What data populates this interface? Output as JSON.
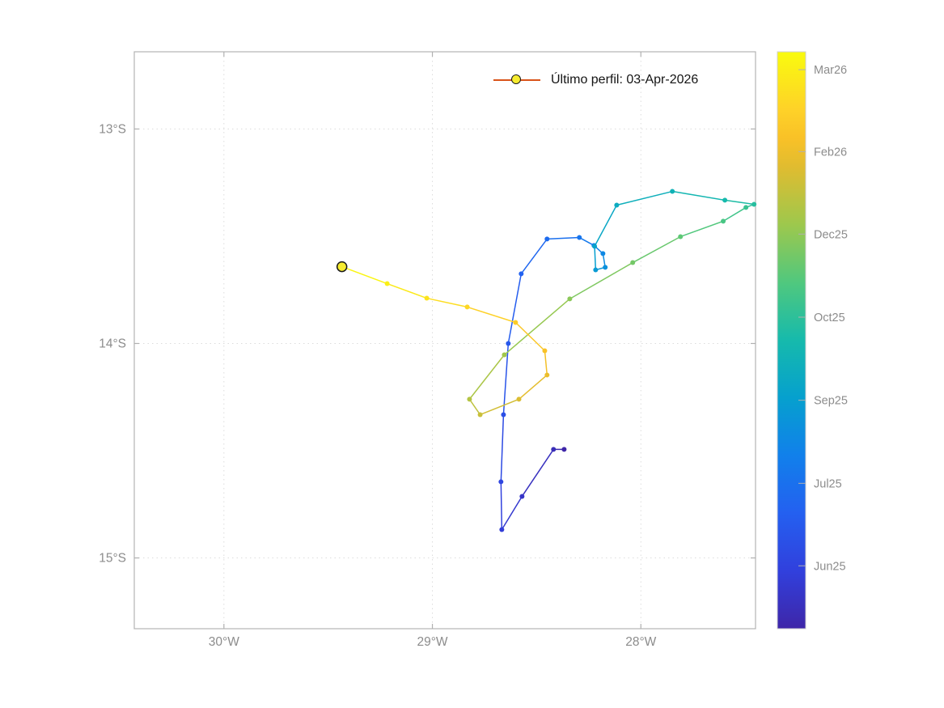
{
  "chart_data": {
    "type": "line",
    "description": "Float trajectory map colored by profile date (parula colormap) with last-profile marker",
    "title": "",
    "xlabel": "",
    "ylabel": "",
    "grid": "dotted",
    "legend": {
      "label": "Último perfil: 03-Apr-2026",
      "line_color": "#d95319",
      "marker_fill": "#f6ec2f",
      "marker_edge": "#1a1a1a",
      "position": "top-right-inside"
    },
    "xlim_degW": [
      30.43,
      27.45
    ],
    "ylim_degS": [
      12.64,
      15.33
    ],
    "x_ticks": [
      {
        "value_degW": 30,
        "label": "30°W"
      },
      {
        "value_degW": 29,
        "label": "29°W"
      },
      {
        "value_degW": 28,
        "label": "28°W"
      }
    ],
    "y_ticks": [
      {
        "value_degS": 13,
        "label": "13°S"
      },
      {
        "value_degS": 14,
        "label": "14°S"
      },
      {
        "value_degS": 15,
        "label": "15°S"
      }
    ],
    "colormap_name": "parula",
    "colormap_stops": [
      [
        0.0,
        "#3e26a8"
      ],
      [
        0.1,
        "#3140dd"
      ],
      [
        0.2,
        "#2460f0"
      ],
      [
        0.3,
        "#1180eb"
      ],
      [
        0.4,
        "#06a0ce"
      ],
      [
        0.5,
        "#16baac"
      ],
      [
        0.6,
        "#50c87e"
      ],
      [
        0.7,
        "#9dc84d"
      ],
      [
        0.8,
        "#e0bc30"
      ],
      [
        0.85,
        "#f9c127"
      ],
      [
        0.9,
        "#fed228"
      ],
      [
        1.0,
        "#f9fb0e"
      ]
    ],
    "colorbar_ticks": [
      {
        "label": "Jun25",
        "t": 0.109
      },
      {
        "label": "Jul25",
        "t": 0.252
      },
      {
        "label": "Sep25",
        "t": 0.396
      },
      {
        "label": "Oct25",
        "t": 0.54
      },
      {
        "label": "Dec25",
        "t": 0.684
      },
      {
        "label": "Feb26",
        "t": 0.827
      },
      {
        "label": "Mar26",
        "t": 0.969
      }
    ],
    "trajectory": [
      {
        "lon_degW": 28.368,
        "lat_degS": 14.494,
        "t": 0.0
      },
      {
        "lon_degW": 28.419,
        "lat_degS": 14.494,
        "t": 0.029
      },
      {
        "lon_degW": 28.57,
        "lat_degS": 14.713,
        "t": 0.059
      },
      {
        "lon_degW": 28.667,
        "lat_degS": 14.868,
        "t": 0.088
      },
      {
        "lon_degW": 28.671,
        "lat_degS": 14.645,
        "t": 0.118
      },
      {
        "lon_degW": 28.659,
        "lat_degS": 14.332,
        "t": 0.147
      },
      {
        "lon_degW": 28.636,
        "lat_degS": 14.0,
        "t": 0.176
      },
      {
        "lon_degW": 28.574,
        "lat_degS": 13.675,
        "t": 0.206
      },
      {
        "lon_degW": 28.45,
        "lat_degS": 13.513,
        "t": 0.235
      },
      {
        "lon_degW": 28.295,
        "lat_degS": 13.506,
        "t": 0.265
      },
      {
        "lon_degW": 28.225,
        "lat_degS": 13.543,
        "t": 0.294
      },
      {
        "lon_degW": 28.182,
        "lat_degS": 13.581,
        "t": 0.324
      },
      {
        "lon_degW": 28.171,
        "lat_degS": 13.645,
        "t": 0.353
      },
      {
        "lon_degW": 28.217,
        "lat_degS": 13.657,
        "t": 0.382
      },
      {
        "lon_degW": 28.222,
        "lat_degS": 13.547,
        "t": 0.412
      },
      {
        "lon_degW": 28.116,
        "lat_degS": 13.355,
        "t": 0.441
      },
      {
        "lon_degW": 27.849,
        "lat_degS": 13.291,
        "t": 0.471
      },
      {
        "lon_degW": 27.597,
        "lat_degS": 13.332,
        "t": 0.5
      },
      {
        "lon_degW": 27.457,
        "lat_degS": 13.351,
        "t": 0.529
      },
      {
        "lon_degW": 27.496,
        "lat_degS": 13.366,
        "t": 0.559
      },
      {
        "lon_degW": 27.605,
        "lat_degS": 13.43,
        "t": 0.588
      },
      {
        "lon_degW": 27.81,
        "lat_degS": 13.502,
        "t": 0.618
      },
      {
        "lon_degW": 28.039,
        "lat_degS": 13.623,
        "t": 0.647
      },
      {
        "lon_degW": 28.341,
        "lat_degS": 13.792,
        "t": 0.676
      },
      {
        "lon_degW": 28.655,
        "lat_degS": 14.053,
        "t": 0.706
      },
      {
        "lon_degW": 28.822,
        "lat_degS": 14.26,
        "t": 0.735
      },
      {
        "lon_degW": 28.771,
        "lat_degS": 14.332,
        "t": 0.765
      },
      {
        "lon_degW": 28.585,
        "lat_degS": 14.26,
        "t": 0.794
      },
      {
        "lon_degW": 28.45,
        "lat_degS": 14.147,
        "t": 0.824
      },
      {
        "lon_degW": 28.461,
        "lat_degS": 14.034,
        "t": 0.853
      },
      {
        "lon_degW": 28.601,
        "lat_degS": 13.902,
        "t": 0.882
      },
      {
        "lon_degW": 28.833,
        "lat_degS": 13.83,
        "t": 0.912
      },
      {
        "lon_degW": 29.027,
        "lat_degS": 13.789,
        "t": 0.941
      },
      {
        "lon_degW": 29.217,
        "lat_degS": 13.721,
        "t": 0.971
      },
      {
        "lon_degW": 29.434,
        "lat_degS": 13.642,
        "t": 1.0
      }
    ],
    "last_profile": {
      "lon_degW": 29.434,
      "lat_degS": 13.642,
      "date_label": "03-Apr-2026"
    },
    "colors": {
      "axis_border": "#b3b3b3",
      "tick": "#b0b0b0",
      "grid": "#dcdcdc",
      "tick_label": "#8c8c8c",
      "background": "#ffffff"
    }
  }
}
